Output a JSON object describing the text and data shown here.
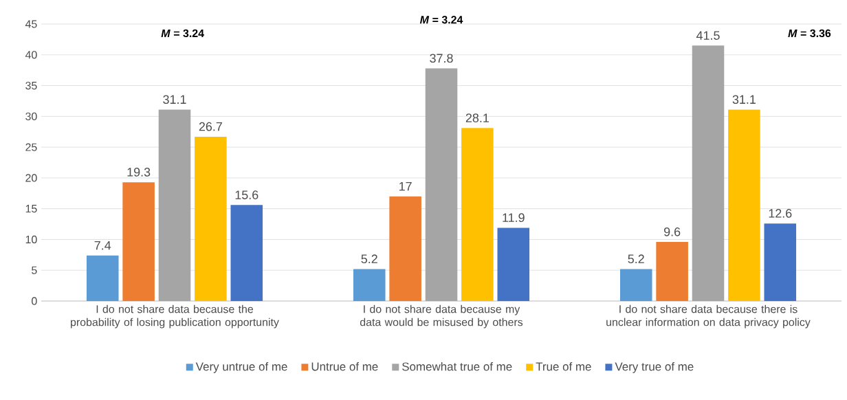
{
  "chart_data": {
    "type": "bar",
    "categories": [
      "I do not share data because the probability of losing publication opportunity",
      "I do not share data because my data would be misused by others",
      "I do not share data because there is unclear information on data privacy policy"
    ],
    "series": [
      {
        "name": "Very untrue of me",
        "color": "#5b9bd5",
        "values": [
          7.4,
          5.2,
          5.2
        ]
      },
      {
        "name": "Untrue of me",
        "color": "#ed7d31",
        "values": [
          19.3,
          17,
          9.6
        ]
      },
      {
        "name": "Somewhat true of me",
        "color": "#a5a5a5",
        "values": [
          31.1,
          37.8,
          41.5
        ]
      },
      {
        "name": "True of me",
        "color": "#ffc000",
        "values": [
          26.7,
          28.1,
          31.1
        ]
      },
      {
        "name": "Very true of me",
        "color": "#4472c4",
        "values": [
          15.6,
          11.9,
          12.6
        ]
      }
    ],
    "ylim": [
      0,
      45
    ],
    "yticks": [
      0,
      5,
      10,
      15,
      20,
      25,
      30,
      35,
      40,
      45
    ],
    "grid": "y",
    "legend": "bottom",
    "data_labels": true,
    "annotations": [
      "*M* = 3.24",
      "*M* = 3.24",
      "*M* = 3.36"
    ]
  }
}
